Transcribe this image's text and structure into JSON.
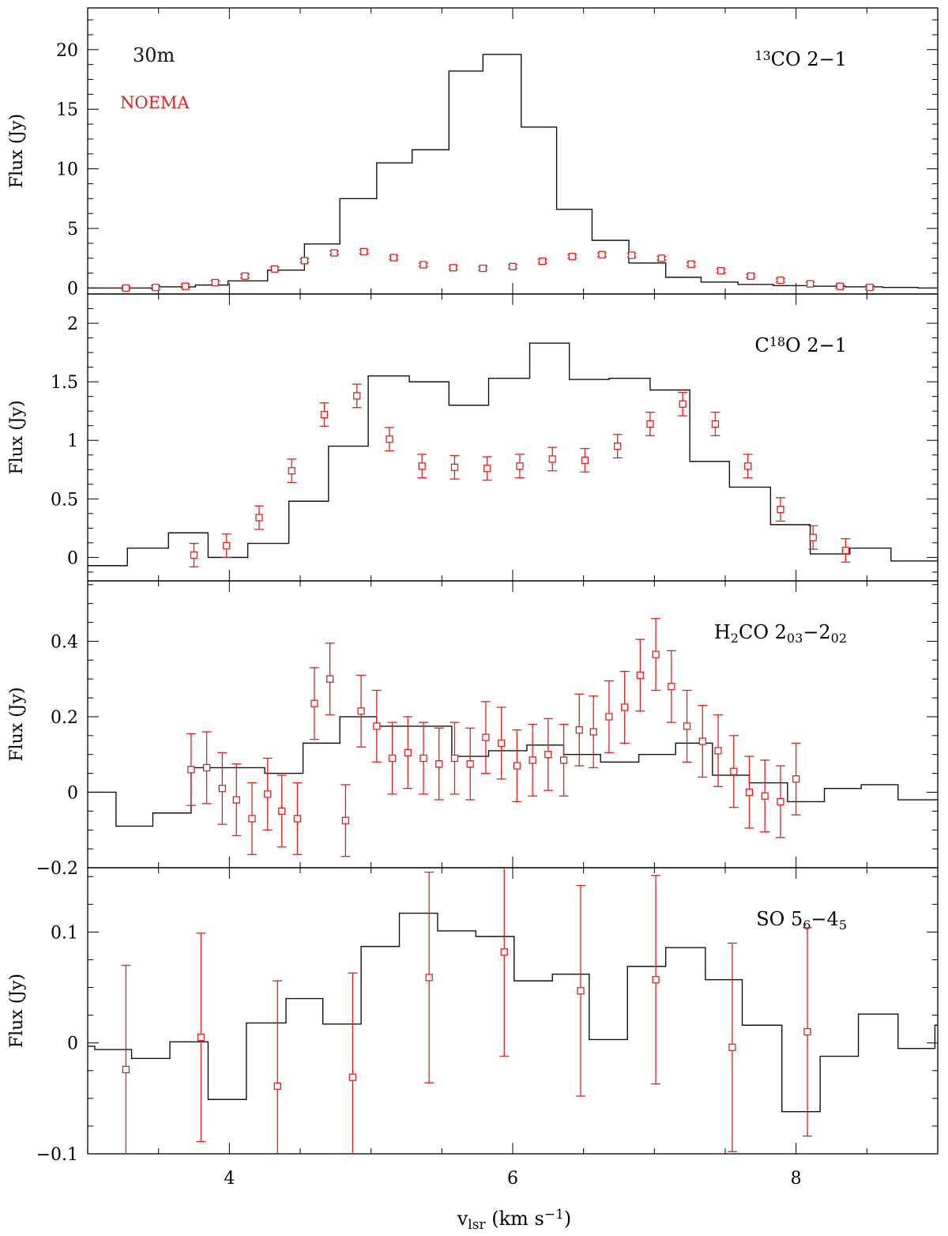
{
  "figure": {
    "x_axis_label": "v",
    "x_axis_label_sub": "lsr",
    "x_axis_label_units": " (km s",
    "x_axis_label_exp": "−1",
    "x_axis_label_close": ")",
    "x_ticks": [
      "4",
      "6",
      "8"
    ],
    "legend": [
      {
        "label": "30m",
        "color": "#111111"
      },
      {
        "label": "NOEMA",
        "color": "#dd2222"
      }
    ]
  },
  "chart_data": [
    {
      "type": "line",
      "title_parts": [
        {
          "t": "13",
          "sup": true
        },
        {
          "t": "CO 2−1"
        }
      ],
      "ylabel": "Flux (Jy)",
      "xlim": [
        3.0,
        9.0
      ],
      "ylim": [
        -0.5,
        23.5
      ],
      "yticks": [
        0,
        5,
        10,
        15,
        20
      ],
      "ytick_labels": [
        "0",
        "5",
        "10",
        "15",
        "20"
      ],
      "series": [
        {
          "name": "30m",
          "style": "step",
          "edges": [
            3.0,
            3.48,
            3.76,
            3.99,
            4.27,
            4.53,
            4.78,
            5.04,
            5.29,
            5.55,
            5.79,
            6.06,
            6.31,
            6.56,
            6.82,
            7.08,
            7.33,
            7.59,
            7.84,
            8.1,
            8.35,
            8.61,
            8.86,
            9.0
          ],
          "values": [
            0.0,
            0.1,
            0.25,
            0.6,
            1.5,
            3.7,
            7.5,
            10.5,
            11.6,
            18.2,
            19.6,
            13.5,
            6.6,
            4.0,
            2.1,
            0.9,
            0.5,
            0.3,
            0.2,
            0.15,
            0.1,
            0.05,
            0.0
          ]
        },
        {
          "name": "NOEMA",
          "style": "points",
          "x": [
            3.27,
            3.48,
            3.69,
            3.9,
            4.11,
            4.32,
            4.53,
            4.74,
            4.95,
            5.16,
            5.37,
            5.58,
            5.79,
            6.0,
            6.21,
            6.42,
            6.63,
            6.84,
            7.05,
            7.26,
            7.47,
            7.68,
            7.89,
            8.1,
            8.31,
            8.52
          ],
          "y": [
            0.0,
            0.05,
            0.15,
            0.45,
            1.0,
            1.6,
            2.3,
            2.95,
            3.05,
            2.55,
            1.95,
            1.7,
            1.65,
            1.8,
            2.25,
            2.65,
            2.8,
            2.75,
            2.5,
            2.0,
            1.45,
            1.0,
            0.65,
            0.35,
            0.15,
            0.05
          ],
          "err": [
            0.15,
            0.15,
            0.15,
            0.15,
            0.15,
            0.15,
            0.15,
            0.15,
            0.15,
            0.15,
            0.15,
            0.15,
            0.15,
            0.15,
            0.15,
            0.15,
            0.15,
            0.15,
            0.15,
            0.15,
            0.15,
            0.15,
            0.15,
            0.15,
            0.15,
            0.15
          ]
        }
      ]
    },
    {
      "type": "line",
      "title_parts": [
        {
          "t": "C"
        },
        {
          "t": "18",
          "sup": true
        },
        {
          "t": "O 2−1"
        }
      ],
      "ylabel": "Flux (Jy)",
      "xlim": [
        3.0,
        9.0
      ],
      "ylim": [
        -0.2,
        2.25
      ],
      "yticks": [
        0,
        0.5,
        1,
        1.5,
        2
      ],
      "ytick_labels": [
        "0",
        "0.5",
        "1",
        "1.5",
        "2"
      ],
      "series": [
        {
          "name": "30m",
          "style": "step",
          "edges": [
            3.0,
            3.28,
            3.57,
            3.85,
            4.13,
            4.42,
            4.7,
            4.98,
            5.27,
            5.55,
            5.83,
            6.12,
            6.4,
            6.68,
            6.97,
            7.25,
            7.53,
            7.82,
            8.1,
            8.38,
            8.67,
            9.0
          ],
          "values": [
            -0.07,
            0.08,
            0.21,
            0.0,
            0.12,
            0.48,
            0.95,
            1.55,
            1.5,
            1.3,
            1.53,
            1.83,
            1.52,
            1.53,
            1.43,
            0.82,
            0.6,
            0.28,
            0.03,
            0.08,
            -0.03,
            -0.01
          ]
        },
        {
          "name": "NOEMA",
          "style": "points",
          "x": [
            3.75,
            3.98,
            4.21,
            4.44,
            4.67,
            4.9,
            5.13,
            5.36,
            5.59,
            5.82,
            6.05,
            6.28,
            6.51,
            6.74,
            6.97,
            7.2,
            7.43,
            7.66,
            7.89,
            8.12,
            8.35
          ],
          "y": [
            0.02,
            0.1,
            0.34,
            0.74,
            1.22,
            1.38,
            1.01,
            0.78,
            0.77,
            0.76,
            0.78,
            0.84,
            0.83,
            0.95,
            1.14,
            1.31,
            1.14,
            0.78,
            0.41,
            0.17,
            0.06
          ],
          "err": [
            0.1,
            0.1,
            0.1,
            0.1,
            0.1,
            0.1,
            0.1,
            0.1,
            0.1,
            0.1,
            0.1,
            0.1,
            0.1,
            0.1,
            0.1,
            0.1,
            0.1,
            0.1,
            0.1,
            0.1,
            0.1
          ]
        }
      ]
    },
    {
      "type": "line",
      "title_parts": [
        {
          "t": "H"
        },
        {
          "t": "2",
          "sub": true
        },
        {
          "t": "CO 2"
        },
        {
          "t": "03",
          "sub": true
        },
        {
          "t": "−2"
        },
        {
          "t": "02",
          "sub": true
        }
      ],
      "ylabel": "Flux (Jy)",
      "xlim": [
        3.0,
        9.0
      ],
      "ylim": [
        -0.2,
        0.56
      ],
      "yticks": [
        -0.2,
        0,
        0.2,
        0.4
      ],
      "ytick_labels": [
        "−0.2",
        "0",
        "0.2",
        "0.4"
      ],
      "series": [
        {
          "name": "30m",
          "style": "step",
          "edges": [
            3.0,
            3.2,
            3.46,
            3.73,
            3.99,
            4.25,
            4.52,
            4.78,
            5.04,
            5.31,
            5.57,
            5.83,
            6.1,
            6.36,
            6.62,
            6.89,
            7.15,
            7.41,
            7.67,
            7.94,
            8.2,
            8.46,
            8.72,
            9.0
          ],
          "values": [
            0.0,
            -0.09,
            -0.055,
            0.065,
            0.065,
            0.05,
            0.13,
            0.2,
            0.175,
            0.175,
            0.095,
            0.11,
            0.125,
            0.1,
            0.08,
            0.1,
            0.13,
            0.045,
            0.025,
            -0.025,
            0.01,
            0.02,
            -0.02
          ]
        },
        {
          "name": "NOEMA",
          "style": "points",
          "x": [
            3.73,
            3.84,
            3.95,
            4.05,
            4.16,
            4.27,
            4.37,
            4.48,
            4.6,
            4.71,
            4.82,
            4.93,
            5.04,
            5.15,
            5.26,
            5.37,
            5.48,
            5.59,
            5.7,
            5.81,
            5.92,
            6.03,
            6.14,
            6.25,
            6.36,
            6.47,
            6.57,
            6.68,
            6.79,
            6.9,
            7.01,
            7.12,
            7.23,
            7.34,
            7.45,
            7.56,
            7.67,
            7.78,
            7.89,
            8.0
          ],
          "y": [
            0.06,
            0.065,
            0.01,
            -0.02,
            -0.07,
            -0.005,
            -0.05,
            -0.07,
            0.235,
            0.3,
            -0.075,
            0.215,
            0.175,
            0.09,
            0.105,
            0.09,
            0.075,
            0.09,
            0.075,
            0.145,
            0.13,
            0.07,
            0.085,
            0.1,
            0.085,
            0.165,
            0.16,
            0.2,
            0.225,
            0.31,
            0.365,
            0.28,
            0.175,
            0.135,
            0.11,
            0.055,
            0.0,
            -0.01,
            -0.025,
            0.035
          ],
          "err": [
            0.095,
            0.095,
            0.095,
            0.095,
            0.095,
            0.095,
            0.095,
            0.095,
            0.095,
            0.095,
            0.095,
            0.095,
            0.095,
            0.095,
            0.095,
            0.095,
            0.095,
            0.095,
            0.095,
            0.095,
            0.095,
            0.095,
            0.095,
            0.095,
            0.095,
            0.095,
            0.095,
            0.095,
            0.095,
            0.095,
            0.095,
            0.095,
            0.095,
            0.095,
            0.095,
            0.095,
            0.095,
            0.095,
            0.095,
            0.095
          ]
        }
      ]
    },
    {
      "type": "line",
      "title_parts": [
        {
          "t": "SO 5"
        },
        {
          "t": "6",
          "sub": true
        },
        {
          "t": "−4"
        },
        {
          "t": "5",
          "sub": true
        }
      ],
      "ylabel": "Flux (Jy)",
      "xlim": [
        3.0,
        9.0
      ],
      "ylim": [
        -0.1,
        0.158
      ],
      "yticks": [
        -0.1,
        0,
        0.1
      ],
      "ytick_labels": [
        "−0.1",
        "0",
        "0.1"
      ],
      "series": [
        {
          "name": "30m",
          "style": "step",
          "edges": [
            3.0,
            3.05,
            3.31,
            3.58,
            3.85,
            4.12,
            4.4,
            4.66,
            4.93,
            5.2,
            5.47,
            5.74,
            6.01,
            6.28,
            6.54,
            6.81,
            7.08,
            7.36,
            7.62,
            7.9,
            8.17,
            8.44,
            8.72,
            8.98,
            9.0
          ],
          "values": [
            -0.003,
            -0.006,
            -0.014,
            0.001,
            -0.051,
            0.018,
            0.04,
            0.017,
            0.087,
            0.117,
            0.101,
            0.096,
            0.056,
            0.062,
            0.003,
            0.069,
            0.086,
            0.057,
            0.016,
            -0.062,
            -0.012,
            0.026,
            -0.005,
            0.016
          ]
        },
        {
          "name": "NOEMA",
          "style": "points",
          "x": [
            3.27,
            3.8,
            4.34,
            4.87,
            5.41,
            5.94,
            6.48,
            7.01,
            7.55,
            8.08
          ],
          "y": [
            -0.024,
            0.005,
            -0.039,
            -0.031,
            0.059,
            0.082,
            0.047,
            0.057,
            -0.004,
            0.01
          ],
          "err": [
            0.094,
            0.094,
            0.095,
            0.094,
            0.095,
            0.094,
            0.095,
            0.094,
            0.094,
            0.094
          ]
        }
      ]
    }
  ]
}
